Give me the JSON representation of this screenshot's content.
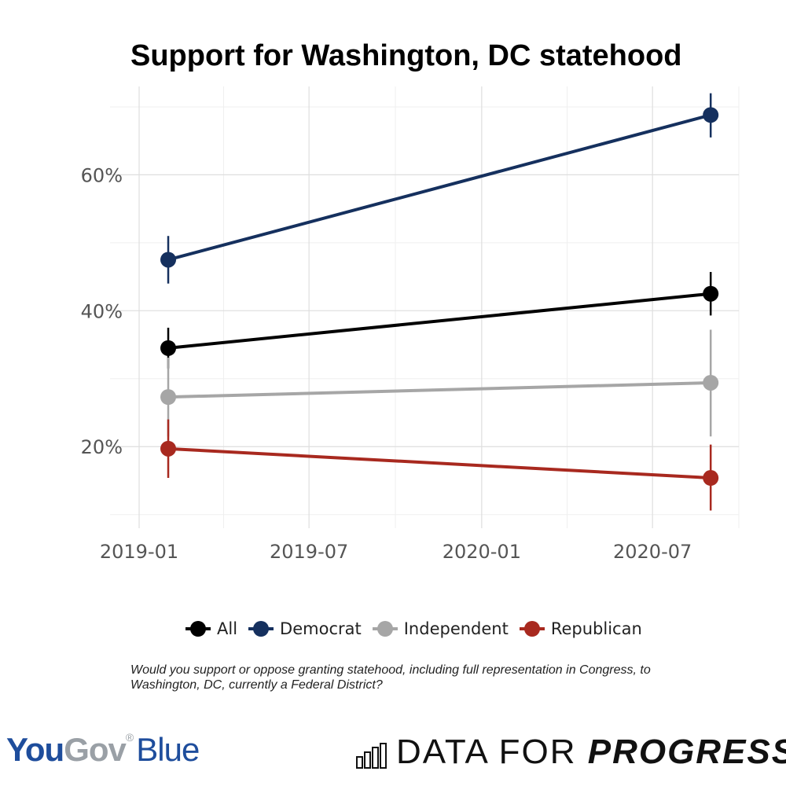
{
  "chart_data": {
    "type": "line",
    "title": "Support for Washington, DC statehood",
    "xlabel": "",
    "ylabel": "",
    "x_ticks": [
      "2019-01",
      "2019-07",
      "2020-01",
      "2020-07"
    ],
    "y_ticks": [
      "20%",
      "40%",
      "60%"
    ],
    "ylim": [
      8,
      73
    ],
    "grid": true,
    "legend_position": "bottom",
    "x": [
      "2019-02-01",
      "2020-09-01"
    ],
    "series": [
      {
        "name": "All",
        "color": "#000000",
        "values": [
          34.5,
          42.5
        ],
        "error_low": [
          31.5,
          39.3
        ],
        "error_high": [
          37.5,
          45.7
        ]
      },
      {
        "name": "Democrat",
        "color": "#15305e",
        "values": [
          47.5,
          68.8
        ],
        "error_low": [
          44.0,
          65.5
        ],
        "error_high": [
          51.0,
          72.0
        ]
      },
      {
        "name": "Independent",
        "color": "#a6a6a6",
        "values": [
          27.3,
          29.4
        ],
        "error_low": [
          21.5,
          21.5
        ],
        "error_high": [
          33.1,
          37.2
        ]
      },
      {
        "name": "Republican",
        "color": "#a8291f",
        "values": [
          19.7,
          15.4
        ],
        "error_low": [
          15.4,
          10.6
        ],
        "error_high": [
          24.0,
          20.3
        ]
      }
    ]
  },
  "footnote": "Would you support or oppose granting statehood, including full representation in Congress, to Washington, DC, currently a Federal District?",
  "logos": {
    "yougov": {
      "you": "You",
      "gov": "Gov",
      "reg": "®",
      "blue": "Blue"
    },
    "dfp": {
      "light": "DATA FOR ",
      "bold": "PROGRESS"
    }
  }
}
